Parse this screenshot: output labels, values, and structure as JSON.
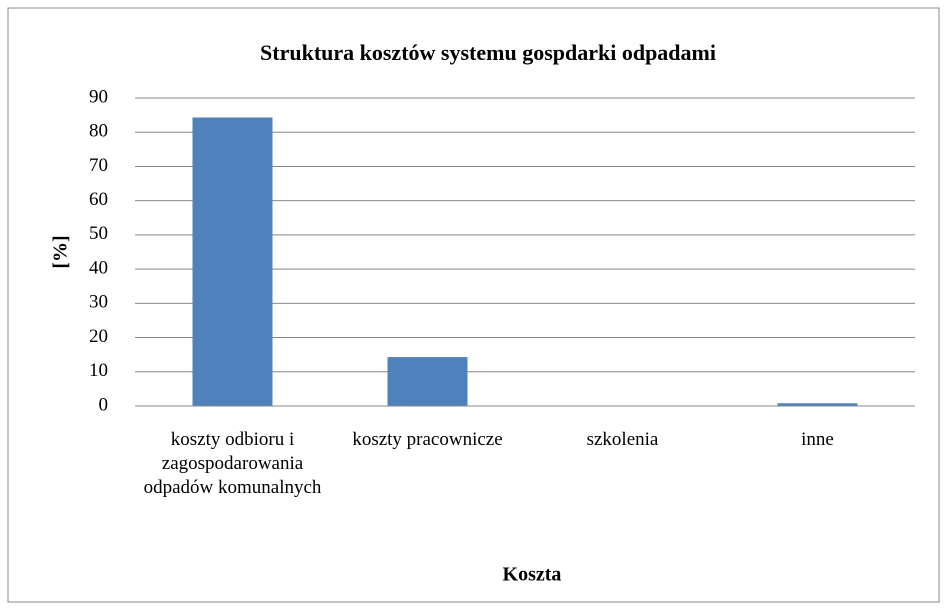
{
  "chart_data": {
    "type": "bar",
    "title": "Struktura kosztów systemu gospdarki odpadami",
    "categories": [
      "koszty odbioru i zagospodarowania odpadów komunalnych",
      "koszty pracownicze",
      "szkolenia",
      "inne"
    ],
    "values": [
      84.3,
      14.3,
      0,
      0.8
    ],
    "color": "#4f81bd",
    "xlabel": "Koszta",
    "ylabel": "[%]",
    "ylim": [
      0,
      90
    ],
    "yticks": [
      0,
      10,
      20,
      30,
      40,
      50,
      60,
      70,
      80,
      90
    ],
    "grid": true
  }
}
